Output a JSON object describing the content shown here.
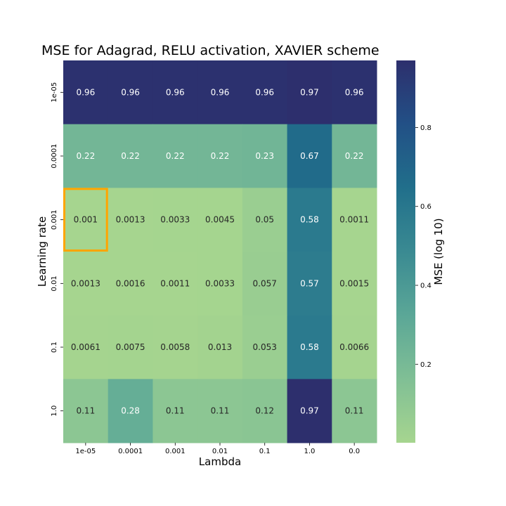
{
  "chart_data": {
    "type": "heatmap",
    "title": "MSE for Adagrad, RELU activation, XAVIER scheme",
    "xlabel": "Lambda",
    "ylabel": "Learning rate",
    "colorbar_label": "MSE (log 10)",
    "x_categories": [
      "1e-05",
      "0.0001",
      "0.001",
      "0.01",
      "0.1",
      "1.0",
      "0.0"
    ],
    "y_categories": [
      "1e-05",
      "0.0001",
      "0.001",
      "0.01",
      "0.1",
      "1.0"
    ],
    "values": [
      [
        0.96,
        0.96,
        0.96,
        0.96,
        0.96,
        0.97,
        0.96
      ],
      [
        0.22,
        0.22,
        0.22,
        0.22,
        0.23,
        0.67,
        0.22
      ],
      [
        0.001,
        0.0013,
        0.0033,
        0.0045,
        0.05,
        0.58,
        0.0011
      ],
      [
        0.0013,
        0.0016,
        0.0011,
        0.0033,
        0.057,
        0.57,
        0.0015
      ],
      [
        0.0061,
        0.0075,
        0.0058,
        0.013,
        0.053,
        0.58,
        0.0066
      ],
      [
        0.11,
        0.28,
        0.11,
        0.11,
        0.12,
        0.97,
        0.11
      ]
    ],
    "cell_labels": [
      [
        "0.96",
        "0.96",
        "0.96",
        "0.96",
        "0.96",
        "0.97",
        "0.96"
      ],
      [
        "0.22",
        "0.22",
        "0.22",
        "0.22",
        "0.23",
        "0.67",
        "0.22"
      ],
      [
        "0.001",
        "0.0013",
        "0.0033",
        "0.0045",
        "0.05",
        "0.58",
        "0.0011"
      ],
      [
        "0.0013",
        "0.0016",
        "0.0011",
        "0.0033",
        "0.057",
        "0.57",
        "0.0015"
      ],
      [
        "0.0061",
        "0.0075",
        "0.0058",
        "0.013",
        "0.053",
        "0.58",
        "0.0066"
      ],
      [
        "0.11",
        "0.28",
        "0.11",
        "0.11",
        "0.12",
        "0.97",
        "0.11"
      ]
    ],
    "colorbar_range": [
      0.001,
      0.97
    ],
    "colorbar_ticks": [
      0.2,
      0.4,
      0.6,
      0.8
    ],
    "colorbar_tick_labels": [
      "0.2",
      "0.4",
      "0.6",
      "0.8"
    ],
    "colormap_stops": [
      "#a6d58f",
      "#80bf95",
      "#5ba797",
      "#3a8a92",
      "#216f8b",
      "#225086",
      "#2d2f6d"
    ],
    "highlight_cell": {
      "row": 2,
      "col": 0,
      "color": "#ffa500"
    },
    "grid": false,
    "legend": "colorbar-right"
  }
}
